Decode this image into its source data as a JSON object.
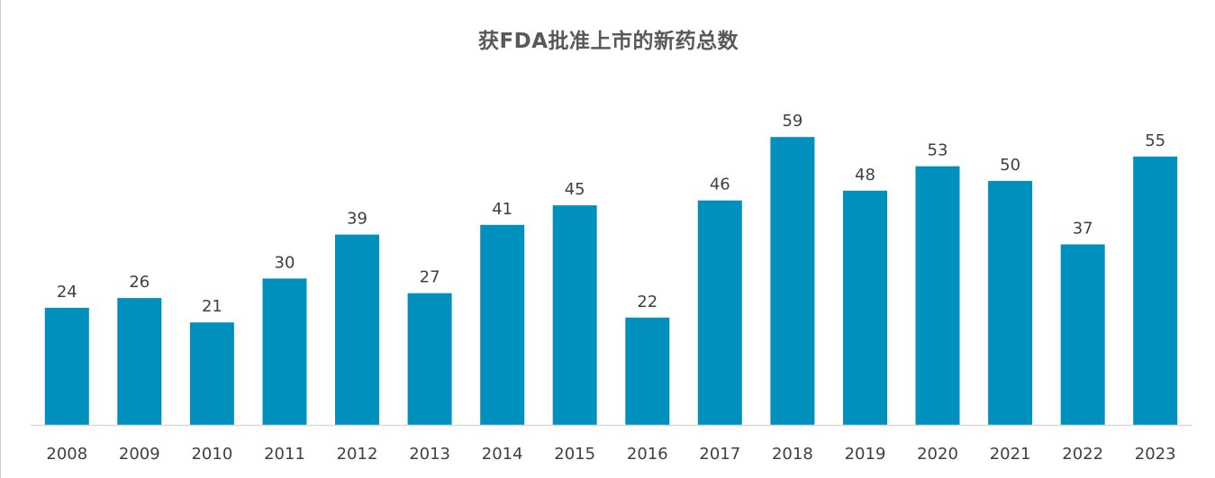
{
  "chart_data": {
    "type": "bar",
    "title": "获FDA批准上市的新药总数",
    "xlabel": "",
    "ylabel": "",
    "categories": [
      "2008",
      "2009",
      "2010",
      "2011",
      "2012",
      "2013",
      "2014",
      "2015",
      "2016",
      "2017",
      "2018",
      "2019",
      "2020",
      "2021",
      "2022",
      "2023"
    ],
    "values": [
      24,
      26,
      21,
      30,
      39,
      27,
      41,
      45,
      22,
      46,
      59,
      48,
      53,
      50,
      37,
      55
    ],
    "ylim": [
      0,
      66
    ],
    "grid": false,
    "legend": "none",
    "data_labels": true,
    "bar_color": "#0090BE"
  }
}
